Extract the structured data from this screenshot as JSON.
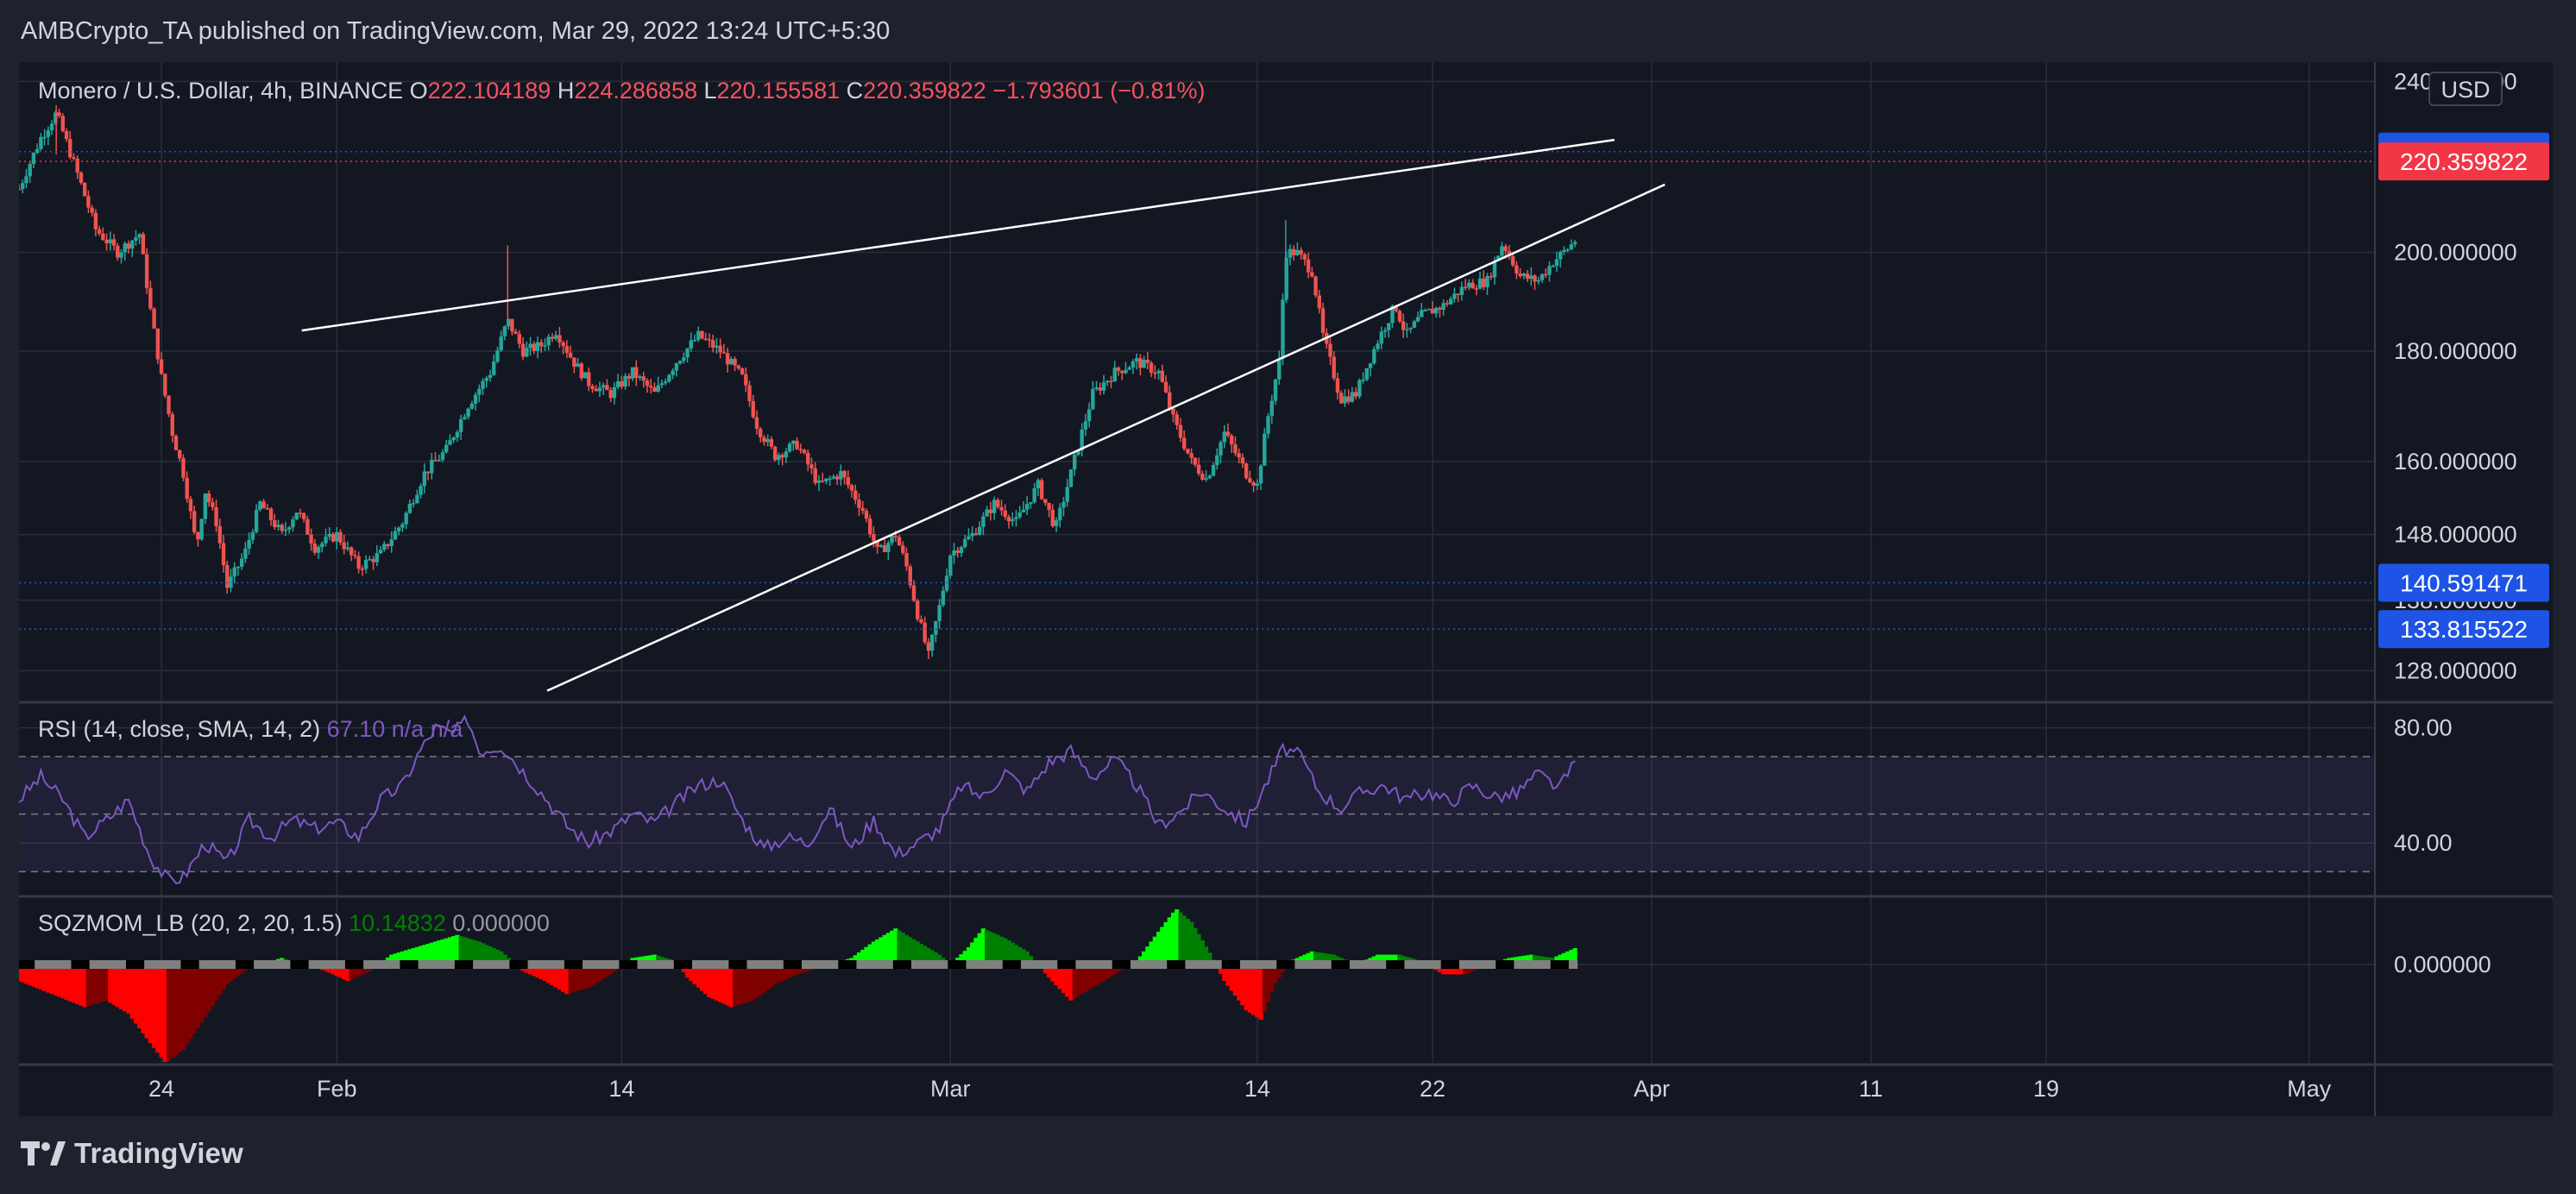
{
  "header": {
    "publisher_line": "AMBCrypto_TA published on TradingView.com, Mar 29, 2022 13:24 UTC+5:30"
  },
  "branding": {
    "logo_icon": "tradingview-logo-icon",
    "logo_text": "TradingView"
  },
  "colors": {
    "background": "#131722",
    "up": "#26a69a",
    "down": "#ef5350",
    "rsi": "#7e57c2",
    "rsi_band": "#7e57c2",
    "price_tag": "#f23645",
    "level_tag": "#1e53e5",
    "sqz_up_strong": "#00ff00",
    "sqz_up_weak": "#008000",
    "sqz_down_strong": "#ff0000",
    "sqz_down_weak": "#800000",
    "text": "#d1d4dc",
    "ohlc": "#f7525f"
  },
  "chart_data": [
    {
      "type": "candlestick",
      "symbol": "Monero / U.S. Dollar, 4h, BINANCE",
      "legend": {
        "o": "222.104189",
        "h": "224.286858",
        "l": "220.155581",
        "c": "220.359822",
        "change": "−1.793601 (−0.81%)"
      },
      "currency": "USD",
      "y_ticks": [
        "240.000000",
        "200.000000",
        "180.000000",
        "160.000000",
        "148.000000",
        "138.000000",
        "128.000000"
      ],
      "y_tick_values": [
        240,
        200,
        180,
        160,
        148,
        138,
        128
      ],
      "ylim_log": [
        124,
        245
      ],
      "x_ticks": [
        "24",
        "Feb",
        "14",
        "Mar",
        "14",
        "22",
        "Apr",
        "11",
        "19",
        "May"
      ],
      "x_tick_days": [
        23,
        31,
        44,
        59,
        73,
        81,
        91,
        101,
        109,
        121
      ],
      "xlim_days": [
        16.5,
        124
      ],
      "last_bar_day": 87.6,
      "price_tags": [
        {
          "label": "222.694238",
          "value": 222.694238,
          "style": "blue"
        },
        {
          "label": "220.359822",
          "value": 220.359822,
          "style": "red"
        },
        {
          "label": "140.591471",
          "value": 140.591471,
          "style": "blue"
        },
        {
          "label": "133.815522",
          "value": 133.815522,
          "style": "blue"
        }
      ],
      "trendlines": [
        {
          "from": [
            29.4,
            184
          ],
          "to": [
            89.3,
            225.5
          ]
        },
        {
          "from": [
            40.6,
            125.3
          ],
          "to": [
            91.6,
            215
          ]
        }
      ],
      "close_path": [
        [
          16.5,
          214
        ],
        [
          17.5,
          226
        ],
        [
          18.2,
          232
        ],
        [
          19.0,
          220
        ],
        [
          20.0,
          205
        ],
        [
          21.0,
          200
        ],
        [
          22.0,
          204
        ],
        [
          22.5,
          188
        ],
        [
          23.0,
          175
        ],
        [
          23.5,
          165
        ],
        [
          24.0,
          158
        ],
        [
          24.6,
          146
        ],
        [
          25.0,
          155
        ],
        [
          25.5,
          150
        ],
        [
          26.0,
          140
        ],
        [
          26.8,
          145
        ],
        [
          27.5,
          153
        ],
        [
          28.5,
          148
        ],
        [
          29.2,
          152
        ],
        [
          30.0,
          146
        ],
        [
          31.0,
          148
        ],
        [
          32.0,
          143
        ],
        [
          33.0,
          145
        ],
        [
          34.0,
          150
        ],
        [
          35.0,
          158
        ],
        [
          36.0,
          162
        ],
        [
          37.0,
          170
        ],
        [
          38.0,
          176
        ],
        [
          38.8,
          186
        ],
        [
          39.5,
          180
        ],
        [
          40.3,
          181
        ],
        [
          41.0,
          184
        ],
        [
          41.8,
          178
        ],
        [
          42.5,
          174
        ],
        [
          43.5,
          172
        ],
        [
          44.5,
          176
        ],
        [
          45.5,
          172
        ],
        [
          46.5,
          178
        ],
        [
          47.5,
          183
        ],
        [
          48.5,
          180
        ],
        [
          49.5,
          175
        ],
        [
          50.2,
          166
        ],
        [
          51.0,
          161
        ],
        [
          52.0,
          163
        ],
        [
          53.0,
          156
        ],
        [
          54.0,
          158
        ],
        [
          55.0,
          152
        ],
        [
          55.7,
          145
        ],
        [
          56.5,
          148
        ],
        [
          57.0,
          143
        ],
        [
          57.5,
          136
        ],
        [
          58.0,
          130
        ],
        [
          58.5,
          137
        ],
        [
          59.0,
          145
        ],
        [
          60.0,
          148
        ],
        [
          61.0,
          153
        ],
        [
          62.0,
          150
        ],
        [
          63.0,
          156
        ],
        [
          63.8,
          149
        ],
        [
          64.5,
          158
        ],
        [
          65.5,
          172
        ],
        [
          66.5,
          176
        ],
        [
          67.5,
          178
        ],
        [
          68.5,
          176
        ],
        [
          69.2,
          167
        ],
        [
          70.0,
          160
        ],
        [
          70.7,
          157
        ],
        [
          71.5,
          165
        ],
        [
          72.5,
          158
        ],
        [
          73.0,
          156
        ],
        [
          73.5,
          168
        ],
        [
          74.0,
          178
        ],
        [
          74.3,
          200
        ],
        [
          74.8,
          200
        ],
        [
          75.5,
          196
        ],
        [
          76.0,
          183
        ],
        [
          76.8,
          171
        ],
        [
          77.5,
          172
        ],
        [
          78.5,
          182
        ],
        [
          79.3,
          189
        ],
        [
          79.8,
          183
        ],
        [
          80.5,
          187
        ],
        [
          81.5,
          189
        ],
        [
          82.5,
          193
        ],
        [
          83.5,
          194
        ],
        [
          84.2,
          202
        ],
        [
          85.0,
          195
        ],
        [
          85.8,
          194
        ],
        [
          86.5,
          198
        ],
        [
          87.2,
          201
        ],
        [
          87.8,
          204
        ],
        [
          88.5,
          209
        ],
        [
          89.0,
          212
        ],
        [
          89.5,
          218
        ],
        [
          89.8,
          222
        ],
        [
          90.0,
          220.36
        ]
      ]
    },
    {
      "type": "line",
      "name": "RSI (14, close, SMA, 14, 2)",
      "value_label": "67.10",
      "na_label": "n/a  n/a",
      "y_ticks": [
        "80.00",
        "40.00"
      ],
      "y_tick_values": [
        80,
        40
      ],
      "ylim": [
        22,
        88
      ],
      "bands": [
        70,
        50,
        30
      ],
      "path": [
        [
          16.5,
          55
        ],
        [
          17.5,
          63
        ],
        [
          18.5,
          55
        ],
        [
          19.5,
          42
        ],
        [
          20.5,
          48
        ],
        [
          21.5,
          55
        ],
        [
          22.5,
          35
        ],
        [
          23.3,
          27
        ],
        [
          24.0,
          28
        ],
        [
          25.0,
          40
        ],
        [
          26.0,
          33
        ],
        [
          27.0,
          48
        ],
        [
          28.0,
          42
        ],
        [
          29.0,
          48
        ],
        [
          30.0,
          45
        ],
        [
          31.0,
          47
        ],
        [
          32.0,
          42
        ],
        [
          33.0,
          55
        ],
        [
          34.0,
          60
        ],
        [
          34.8,
          72
        ],
        [
          35.5,
          80
        ],
        [
          36.3,
          78
        ],
        [
          37.0,
          83
        ],
        [
          37.5,
          72
        ],
        [
          38.5,
          74
        ],
        [
          39.5,
          65
        ],
        [
          40.5,
          56
        ],
        [
          41.5,
          46
        ],
        [
          42.5,
          40
        ],
        [
          43.5,
          44
        ],
        [
          44.5,
          50
        ],
        [
          45.5,
          47
        ],
        [
          46.5,
          54
        ],
        [
          47.5,
          60
        ],
        [
          48.5,
          62
        ],
        [
          49.5,
          48
        ],
        [
          50.5,
          38
        ],
        [
          51.5,
          42
        ],
        [
          52.5,
          40
        ],
        [
          53.5,
          52
        ],
        [
          54.5,
          38
        ],
        [
          55.5,
          48
        ],
        [
          56.5,
          36
        ],
        [
          57.5,
          40
        ],
        [
          58.5,
          45
        ],
        [
          59.5,
          60
        ],
        [
          60.5,
          56
        ],
        [
          61.5,
          65
        ],
        [
          62.5,
          58
        ],
        [
          63.5,
          68
        ],
        [
          64.5,
          72
        ],
        [
          65.5,
          63
        ],
        [
          66.5,
          69
        ],
        [
          67.5,
          60
        ],
        [
          68.5,
          46
        ],
        [
          69.5,
          51
        ],
        [
          70.5,
          58
        ],
        [
          71.5,
          52
        ],
        [
          72.5,
          47
        ],
        [
          73.5,
          62
        ],
        [
          74.2,
          73
        ],
        [
          75.0,
          70
        ],
        [
          75.8,
          58
        ],
        [
          76.8,
          52
        ],
        [
          77.8,
          58
        ],
        [
          78.8,
          60
        ],
        [
          79.8,
          55
        ],
        [
          80.8,
          58
        ],
        [
          81.8,
          54
        ],
        [
          82.8,
          60
        ],
        [
          83.8,
          56
        ],
        [
          84.8,
          57
        ],
        [
          85.8,
          64
        ],
        [
          86.8,
          59
        ],
        [
          87.5,
          68
        ],
        [
          88.3,
          66
        ],
        [
          89.0,
          72
        ],
        [
          89.5,
          76
        ],
        [
          89.8,
          70
        ],
        [
          90.0,
          67.1
        ]
      ]
    },
    {
      "type": "histogram",
      "name": "SQZMOM_LB (20, 2, 20, 1.5)",
      "value_label": "10.14832",
      "zero_label": "0.000000",
      "y_tick_values": [
        0
      ],
      "ylim": [
        -30,
        20
      ],
      "path": [
        [
          16.5,
          -5
        ],
        [
          18.0,
          -9
        ],
        [
          19.5,
          -13
        ],
        [
          20.5,
          -11
        ],
        [
          21.5,
          -15
        ],
        [
          22.5,
          -24
        ],
        [
          23.2,
          -30
        ],
        [
          24.0,
          -26
        ],
        [
          25.0,
          -16
        ],
        [
          26.0,
          -6
        ],
        [
          27.0,
          -1
        ],
        [
          28.5,
          2
        ],
        [
          29.5,
          0
        ],
        [
          30.5,
          -2
        ],
        [
          31.5,
          -5
        ],
        [
          32.5,
          -2
        ],
        [
          33.5,
          3
        ],
        [
          35.5,
          7
        ],
        [
          36.5,
          9
        ],
        [
          37.5,
          7
        ],
        [
          38.5,
          4
        ],
        [
          39.5,
          -2
        ],
        [
          40.5,
          -5
        ],
        [
          41.5,
          -9
        ],
        [
          42.5,
          -7
        ],
        [
          43.5,
          -3
        ],
        [
          44.5,
          2
        ],
        [
          45.5,
          3
        ],
        [
          46.5,
          1
        ],
        [
          47.0,
          -4
        ],
        [
          48.0,
          -10
        ],
        [
          49.0,
          -13
        ],
        [
          50.0,
          -11
        ],
        [
          51.0,
          -6
        ],
        [
          52.0,
          -3
        ],
        [
          53.0,
          -1
        ],
        [
          54.5,
          2
        ],
        [
          55.5,
          7
        ],
        [
          56.5,
          11
        ],
        [
          57.5,
          7
        ],
        [
          58.5,
          3
        ],
        [
          59.0,
          0
        ],
        [
          59.8,
          5
        ],
        [
          60.5,
          11
        ],
        [
          61.5,
          8
        ],
        [
          62.5,
          4
        ],
        [
          63.5,
          -4
        ],
        [
          64.5,
          -11
        ],
        [
          65.5,
          -7
        ],
        [
          66.5,
          -3
        ],
        [
          67.5,
          1
        ],
        [
          68.5,
          10
        ],
        [
          69.3,
          17
        ],
        [
          70.0,
          13
        ],
        [
          70.8,
          4
        ],
        [
          71.5,
          -5
        ],
        [
          72.5,
          -14
        ],
        [
          73.2,
          -17
        ],
        [
          73.8,
          -6
        ],
        [
          74.5,
          1
        ],
        [
          75.5,
          4
        ],
        [
          76.5,
          3
        ],
        [
          77.5,
          0
        ],
        [
          78.5,
          3
        ],
        [
          79.5,
          3
        ],
        [
          80.5,
          1
        ],
        [
          81.5,
          -3
        ],
        [
          82.5,
          -3
        ],
        [
          83.5,
          0
        ],
        [
          84.5,
          2
        ],
        [
          85.5,
          3
        ],
        [
          86.5,
          2
        ],
        [
          87.5,
          5
        ],
        [
          88.5,
          7
        ],
        [
          89.5,
          9
        ],
        [
          90.0,
          10.1
        ]
      ]
    }
  ]
}
